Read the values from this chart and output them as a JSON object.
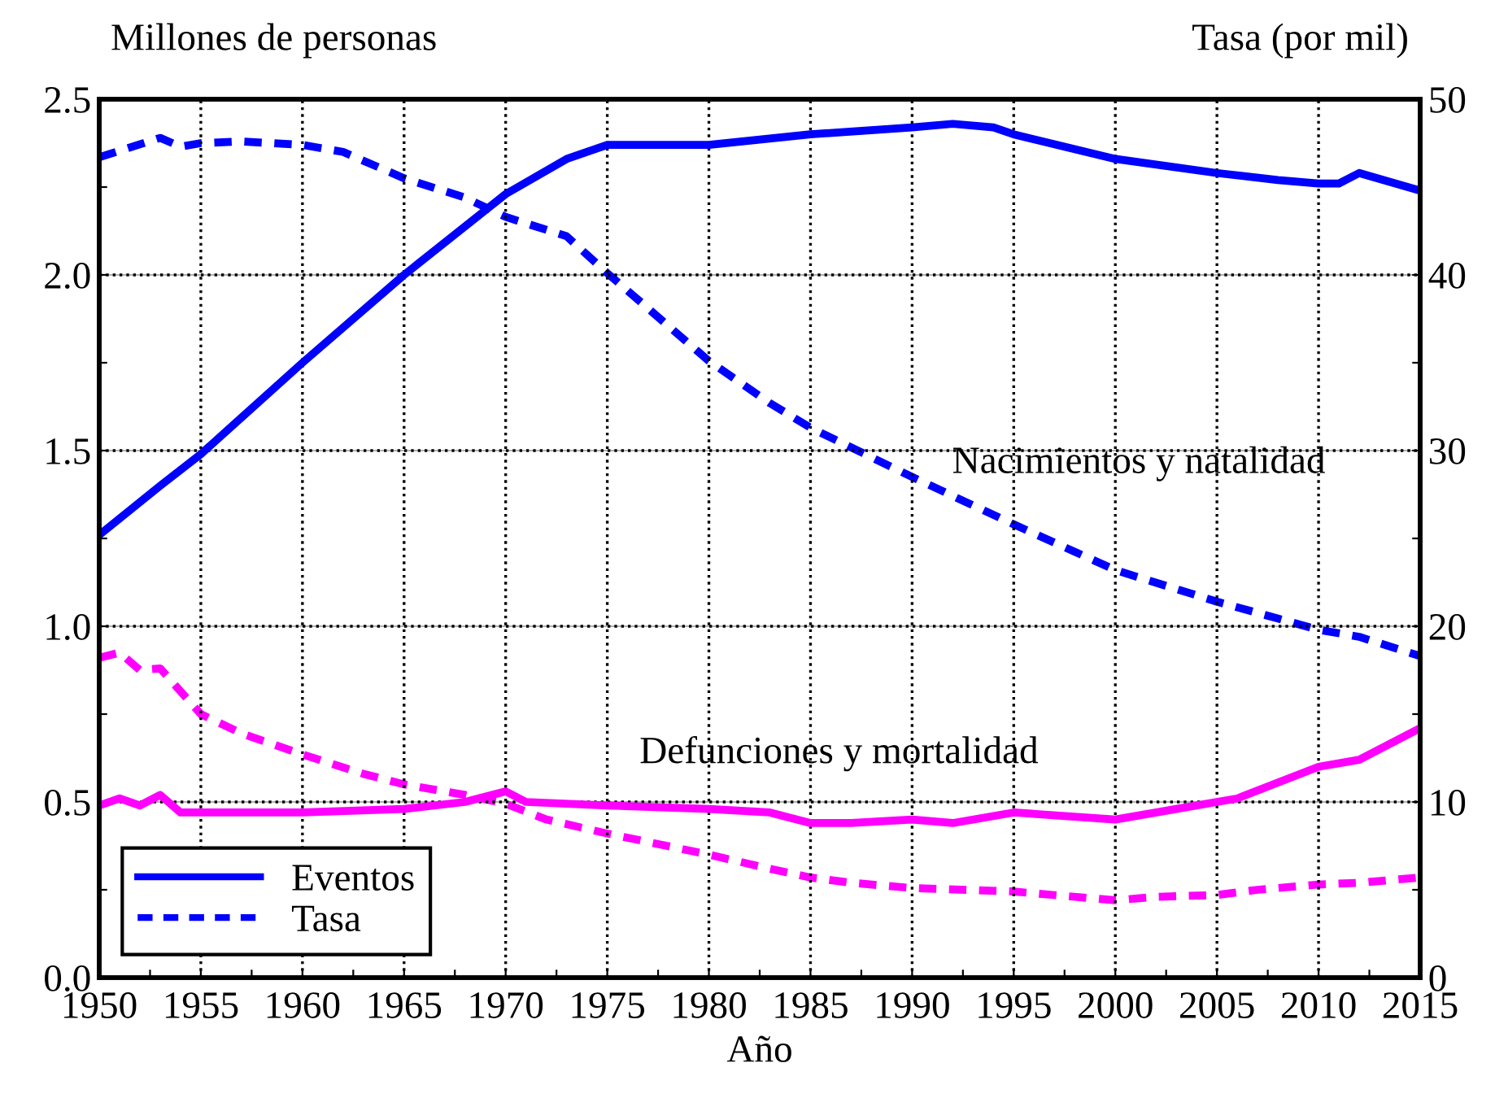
{
  "chart_data": {
    "type": "line",
    "xlabel": "Año",
    "ylabel": "Millones de personas",
    "y2label": "Tasa (por mil)",
    "annotations": [
      "Nacimientos y natalidad",
      "Defunciones y mortalidad"
    ],
    "xlim": [
      1950,
      2015
    ],
    "xticks": [
      1950,
      {
        "value": 1952.5,
        "label": null
      },
      1955,
      {
        "value": 1957.5,
        "label": null
      },
      1960,
      {
        "value": 1962.5,
        "label": null
      },
      1965,
      {
        "value": 1967.5,
        "label": null
      },
      1970,
      {
        "value": 1972.5,
        "label": null
      },
      1975,
      {
        "value": 1977.5,
        "label": null
      },
      1980,
      {
        "value": 1982.5,
        "label": null
      },
      1985,
      {
        "value": 1987.5,
        "label": null
      },
      1990,
      {
        "value": 1992.5,
        "label": null
      },
      1995,
      {
        "value": 1997.5,
        "label": null
      },
      2000,
      {
        "value": 2002.5,
        "label": null
      },
      2005,
      {
        "value": 2007.5,
        "label": null
      },
      2010,
      {
        "value": 2012.5,
        "label": null
      },
      2015
    ],
    "ylim": [
      0,
      2.5
    ],
    "yticks": [
      {
        "value": 0,
        "label": "0.0"
      },
      {
        "value": 0.25,
        "label": null
      },
      0.5,
      {
        "value": 0.75,
        "label": null
      },
      {
        "value": 1,
        "label": "1.0"
      },
      {
        "value": 1.25,
        "label": null
      },
      1.5,
      {
        "value": 1.75,
        "label": null
      },
      {
        "value": 2,
        "label": "2.0"
      },
      {
        "value": 2.25,
        "label": null
      },
      2.5
    ],
    "y2lim": [
      0,
      50
    ],
    "y2ticks": [
      0,
      {
        "value": 5,
        "label": null
      },
      10,
      {
        "value": 15,
        "label": null
      },
      20,
      {
        "value": 25,
        "label": null
      },
      30,
      {
        "value": 35,
        "label": null
      },
      40,
      {
        "value": 45,
        "label": null
      },
      50
    ],
    "grid": true,
    "legend": "bottom left",
    "marker": "none",
    "series": [
      {
        "name": "Eventos",
        "color": "#0000ff",
        "line_style": "solid",
        "x": [
          1950,
          1953,
          1955,
          1960,
          1965,
          1970,
          1973,
          1975,
          1980,
          1985,
          1990,
          1992,
          1994,
          1995,
          2000,
          2005,
          2008,
          2010,
          2011,
          2012,
          2015
        ],
        "values": [
          1.26,
          1.4,
          1.49,
          1.75,
          2.0,
          2.23,
          2.33,
          2.37,
          2.37,
          2.4,
          2.42,
          2.43,
          2.42,
          2.4,
          2.33,
          2.29,
          2.27,
          2.26,
          2.26,
          2.29,
          2.24
        ]
      },
      {
        "name": "Tasa",
        "color": "#0000ff",
        "line_style": "dashed",
        "axis": "y2",
        "x": [
          1950,
          1953,
          1954,
          1955,
          1957,
          1960,
          1962,
          1965,
          1968,
          1970,
          1973,
          1975,
          1980,
          1983,
          1985,
          1990,
          1995,
          2000,
          2005,
          2010,
          2012,
          2015
        ],
        "values": [
          46.7,
          47.8,
          47.3,
          47.5,
          47.6,
          47.4,
          47.0,
          45.5,
          44.4,
          43.3,
          42.2,
          40.1,
          35.1,
          32.7,
          31.3,
          28.5,
          25.8,
          23.2,
          21.4,
          19.8,
          19.4,
          18.3
        ]
      },
      {
        "color": "#ff00ff",
        "line_style": "solid",
        "x": [
          1950,
          1951,
          1952,
          1953,
          1954,
          1955,
          1960,
          1965,
          1968,
          1970,
          1971,
          1975,
          1980,
          1983,
          1985,
          1987,
          1990,
          1992,
          1995,
          2000,
          2003,
          2005,
          2006,
          2010,
          2012,
          2015
        ],
        "values": [
          0.49,
          0.51,
          0.49,
          0.52,
          0.47,
          0.47,
          0.47,
          0.48,
          0.5,
          0.53,
          0.5,
          0.49,
          0.48,
          0.47,
          0.44,
          0.44,
          0.45,
          0.44,
          0.47,
          0.45,
          0.48,
          0.5,
          0.51,
          0.6,
          0.62,
          0.71
        ]
      },
      {
        "color": "#ff00ff",
        "line_style": "dashed",
        "axis": "y2",
        "x": [
          1950,
          1951,
          1952,
          1953,
          1955,
          1957,
          1960,
          1963,
          1965,
          1968,
          1970,
          1972,
          1975,
          1980,
          1983,
          1985,
          1987,
          1990,
          1995,
          1997,
          2000,
          2002,
          2005,
          2007,
          2010,
          2012,
          2015
        ],
        "values": [
          18.2,
          18.5,
          17.5,
          17.6,
          15.0,
          13.9,
          12.7,
          11.6,
          11.0,
          10.4,
          9.9,
          9.0,
          8.2,
          7.0,
          6.2,
          5.7,
          5.4,
          5.1,
          4.9,
          4.7,
          4.4,
          4.6,
          4.7,
          5.0,
          5.3,
          5.4,
          5.7
        ]
      }
    ]
  }
}
